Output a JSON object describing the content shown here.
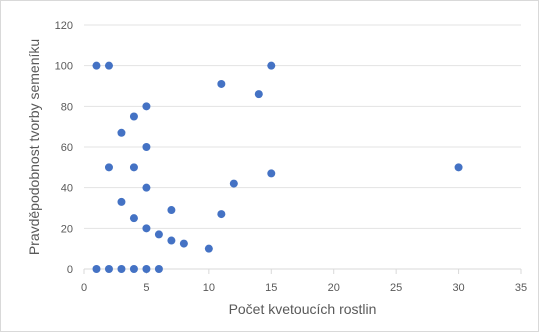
{
  "chart_data": {
    "type": "scatter",
    "title": "",
    "xlabel": "Počet kvetoucích rostlin",
    "ylabel": "Pravděpodobnost tvorby semeníku",
    "xlim": [
      0,
      35
    ],
    "ylim": [
      0,
      120
    ],
    "x_ticks": [
      "0",
      "5",
      "10",
      "15",
      "20",
      "25",
      "30",
      "35"
    ],
    "y_ticks": [
      "0",
      "20",
      "40",
      "60",
      "80",
      "100",
      "120"
    ],
    "grid": "horizontal",
    "legend": "none",
    "marker_color": "#4472c4",
    "axis_color": "#d9d9d9",
    "series": [
      {
        "points": [
          [
            1,
            100
          ],
          [
            2,
            100
          ],
          [
            1,
            0
          ],
          [
            2,
            0
          ],
          [
            3,
            0
          ],
          [
            4,
            0
          ],
          [
            5,
            0
          ],
          [
            6,
            0
          ],
          [
            2,
            50
          ],
          [
            3,
            67
          ],
          [
            3,
            33
          ],
          [
            4,
            75
          ],
          [
            4,
            50
          ],
          [
            4,
            25
          ],
          [
            5,
            80
          ],
          [
            5,
            60
          ],
          [
            5,
            40
          ],
          [
            5,
            20
          ],
          [
            6,
            17
          ],
          [
            7,
            29
          ],
          [
            7,
            14
          ],
          [
            8,
            12.5
          ],
          [
            10,
            10
          ],
          [
            11,
            91
          ],
          [
            11,
            27
          ],
          [
            12,
            42
          ],
          [
            14,
            86
          ],
          [
            15,
            100
          ],
          [
            15,
            47
          ],
          [
            30,
            50
          ]
        ]
      }
    ]
  }
}
